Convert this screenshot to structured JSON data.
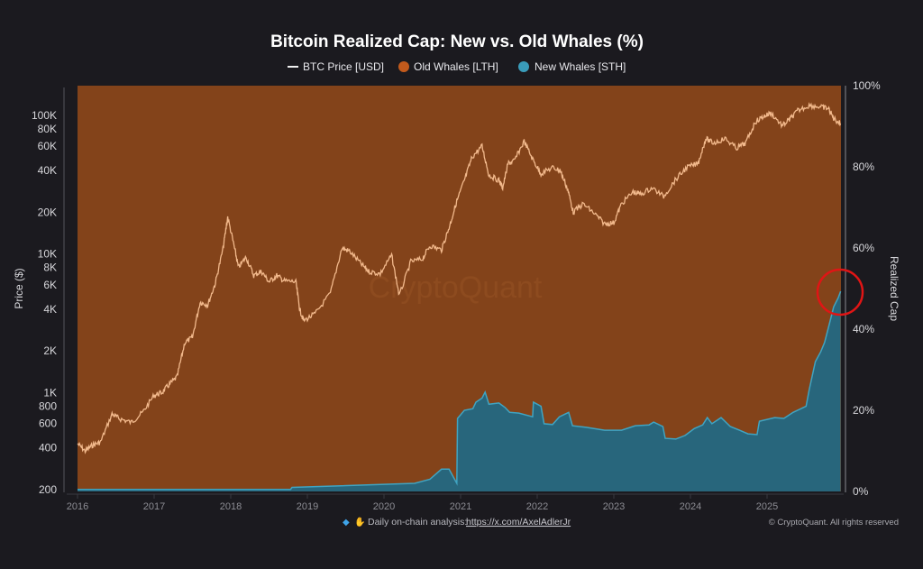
{
  "chart_data": {
    "type": "area",
    "title": "Bitcoin Realized Cap: New vs. Old Whales (%)",
    "legend": {
      "placement": "top",
      "items": [
        {
          "label": "BTC Price [USD]",
          "color": "#f2b98c",
          "marker": "line"
        },
        {
          "label": "Old Whales [LTH]",
          "color": "#c25a1c",
          "marker": "dot"
        },
        {
          "label": "New Whales [STH]",
          "color": "#3a9cba",
          "marker": "dot"
        }
      ]
    },
    "ylabel_left": "Price ($)",
    "ylabel_right": "Realized Cap",
    "y_left_scale": "log",
    "y_left_range": [
      200,
      130000
    ],
    "y_left_ticks": [
      {
        "v": 200,
        "label": "200"
      },
      {
        "v": 400,
        "label": "400"
      },
      {
        "v": 600,
        "label": "600"
      },
      {
        "v": 800,
        "label": "800"
      },
      {
        "v": 1000,
        "label": "1K"
      },
      {
        "v": 2000,
        "label": "2K"
      },
      {
        "v": 4000,
        "label": "4K"
      },
      {
        "v": 6000,
        "label": "6K"
      },
      {
        "v": 8000,
        "label": "8K"
      },
      {
        "v": 10000,
        "label": "10K"
      },
      {
        "v": 20000,
        "label": "20K"
      },
      {
        "v": 40000,
        "label": "40K"
      },
      {
        "v": 60000,
        "label": "60K"
      },
      {
        "v": 80000,
        "label": "80K"
      },
      {
        "v": 100000,
        "label": "100K"
      }
    ],
    "y_right_range": [
      0,
      100
    ],
    "y_right_ticks": [
      {
        "v": 0,
        "label": "0%"
      },
      {
        "v": 20,
        "label": "20%"
      },
      {
        "v": 40,
        "label": "40%"
      },
      {
        "v": 60,
        "label": "60%"
      },
      {
        "v": 80,
        "label": "80%"
      },
      {
        "v": 100,
        "label": "100%"
      }
    ],
    "x_range": [
      2016,
      2025.96
    ],
    "x_ticks": [
      "2016",
      "2017",
      "2018",
      "2019",
      "2020",
      "2021",
      "2022",
      "2023",
      "2024",
      "2025"
    ],
    "grid": false,
    "series": [
      {
        "name": "BTC Price [USD]",
        "axis": "left",
        "x": [
          2016.0,
          2016.1,
          2016.2,
          2016.3,
          2016.45,
          2016.55,
          2016.7,
          2016.85,
          2017.0,
          2017.1,
          2017.2,
          2017.3,
          2017.4,
          2017.5,
          2017.6,
          2017.7,
          2017.8,
          2017.9,
          2017.96,
          2018.05,
          2018.1,
          2018.2,
          2018.3,
          2018.4,
          2018.5,
          2018.6,
          2018.7,
          2018.85,
          2018.9,
          2018.95,
          2019.1,
          2019.3,
          2019.45,
          2019.55,
          2019.7,
          2019.8,
          2019.95,
          2020.1,
          2020.2,
          2020.35,
          2020.5,
          2020.6,
          2020.75,
          2020.85,
          2020.95,
          2021.05,
          2021.15,
          2021.28,
          2021.37,
          2021.5,
          2021.55,
          2021.62,
          2021.7,
          2021.83,
          2021.95,
          2022.05,
          2022.2,
          2022.3,
          2022.4,
          2022.47,
          2022.6,
          2022.75,
          2022.88,
          2023.0,
          2023.1,
          2023.25,
          2023.35,
          2023.5,
          2023.65,
          2023.8,
          2023.95,
          2024.1,
          2024.2,
          2024.3,
          2024.45,
          2024.6,
          2024.72,
          2024.85,
          2024.95,
          2025.05,
          2025.2,
          2025.3,
          2025.4,
          2025.55,
          2025.7,
          2025.8,
          2025.87,
          2025.96
        ],
        "y": [
          430,
          380,
          420,
          440,
          700,
          650,
          610,
          720,
          960,
          1000,
          1150,
          1300,
          2300,
          2500,
          4500,
          4300,
          6200,
          11000,
          18500,
          11000,
          8000,
          9500,
          7000,
          7500,
          6300,
          7000,
          6400,
          6300,
          4000,
          3300,
          3700,
          5200,
          11000,
          10500,
          8500,
          7500,
          7200,
          9800,
          5000,
          8800,
          9200,
          11500,
          10700,
          15500,
          24000,
          34000,
          50000,
          60000,
          37000,
          34000,
          30000,
          45000,
          47000,
          65000,
          47000,
          38000,
          42000,
          40000,
          29000,
          20000,
          23000,
          19500,
          16500,
          16800,
          23000,
          28000,
          27000,
          30000,
          26000,
          34000,
          42000,
          45000,
          68000,
          63000,
          68000,
          58000,
          63000,
          90000,
          98000,
          104000,
          84000,
          94000,
          108000,
          118000,
          115000,
          112000,
          95000,
          87000
        ]
      },
      {
        "name": "New Whales [STH]",
        "axis": "right",
        "x": [
          2016.0,
          2018.78,
          2018.8,
          2020.4,
          2020.6,
          2020.75,
          2020.85,
          2020.95,
          2020.96,
          2021.05,
          2021.16,
          2021.2,
          2021.28,
          2021.32,
          2021.37,
          2021.5,
          2021.58,
          2021.64,
          2021.76,
          2021.94,
          2021.95,
          2022.05,
          2022.09,
          2022.2,
          2022.29,
          2022.41,
          2022.46,
          2022.64,
          2022.88,
          2023.1,
          2023.28,
          2023.46,
          2023.52,
          2023.64,
          2023.67,
          2023.81,
          2023.93,
          2024.05,
          2024.16,
          2024.22,
          2024.28,
          2024.4,
          2024.52,
          2024.64,
          2024.75,
          2024.87,
          2024.9,
          2025.1,
          2025.22,
          2025.34,
          2025.51,
          2025.55,
          2025.63,
          2025.7,
          2025.75,
          2025.81,
          2025.87,
          2025.93,
          2025.96
        ],
        "y": [
          0.5,
          0.5,
          1.0,
          2.0,
          3.0,
          5.5,
          5.5,
          2.0,
          18.0,
          20.0,
          20.4,
          22.0,
          23.0,
          24.5,
          21.5,
          21.8,
          20.7,
          19.5,
          19.3,
          18.4,
          22.0,
          21.0,
          16.7,
          16.5,
          18.4,
          19.5,
          16.2,
          15.8,
          15.1,
          15.1,
          16.2,
          16.4,
          17.1,
          16.0,
          13.1,
          12.9,
          13.8,
          15.5,
          16.4,
          18.2,
          16.7,
          18.2,
          16.0,
          15.1,
          14.2,
          14.0,
          17.3,
          18.2,
          18.0,
          19.5,
          21.0,
          25.0,
          32.0,
          34.4,
          36.7,
          41.0,
          45.5,
          47.8,
          49.3
        ]
      },
      {
        "name": "Old Whales [LTH]",
        "axis": "right",
        "note_fill": "remainder to 100%"
      }
    ],
    "annotation": "red circle highlighting latest New Whales value",
    "watermark": "CryptoQuant"
  },
  "footer": {
    "icons": [
      "gem-icon",
      "raised-hands-icon"
    ],
    "label": "Daily on-chain analysis:",
    "link": "https://x.com/AxelAdlerJr",
    "copyright": "© CryptoQuant. All rights reserved"
  },
  "colors": {
    "background": "#1b1a1f",
    "old_whales_fill": "#83431a",
    "new_whales_fill": "#28667c",
    "new_whales_line": "#3fa4c2",
    "price_line": "#f2b98c",
    "annotation": "#e01515"
  }
}
